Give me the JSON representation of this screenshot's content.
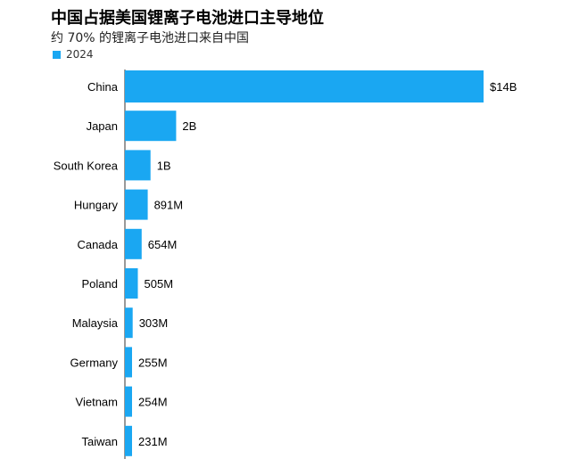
{
  "chart_data": {
    "type": "bar",
    "orientation": "horizontal",
    "title": "中国占据美国锂离子电池进口主导地位",
    "subtitle": "约 70% 的锂离子电池进口来自中国",
    "legend": {
      "entries": [
        "2024"
      ],
      "placement": "top-left"
    },
    "categories": [
      "China",
      "Japan",
      "South Korea",
      "Hungary",
      "Canada",
      "Poland",
      "Malaysia",
      "Germany",
      "Vietnam",
      "Taiwan"
    ],
    "series": [
      {
        "name": "2024",
        "values": [
          14000,
          2000,
          1000,
          891,
          654,
          505,
          303,
          255,
          254,
          231
        ],
        "value_labels": [
          "$14B",
          "2B",
          "1B",
          "891M",
          "654M",
          "505M",
          "303M",
          "255M",
          "254M",
          "231M"
        ],
        "unit": "USD millions"
      }
    ],
    "xlim": [
      0,
      14000
    ],
    "grid": false,
    "colors": {
      "bar": "#1aa7f2",
      "axis": "#333333",
      "text": "#000000"
    }
  }
}
